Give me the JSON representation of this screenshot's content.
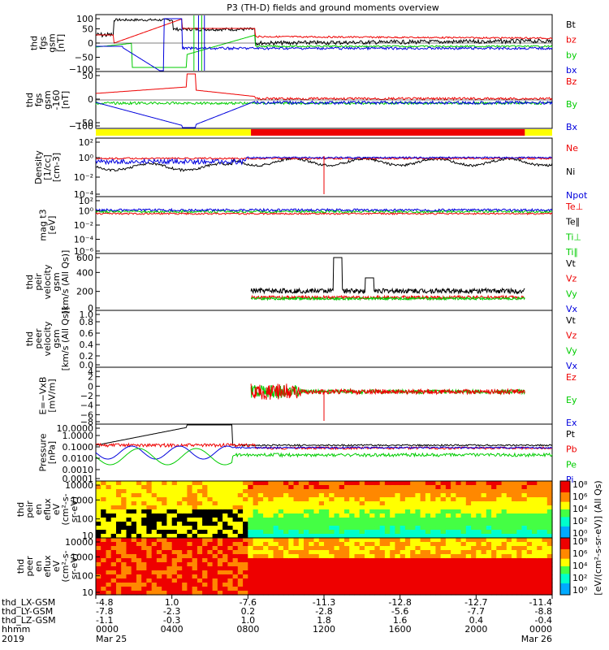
{
  "title": "P3 (TH-D) fields and ground moments overview",
  "colors": {
    "black": "#000000",
    "red": "#ee0000",
    "green": "#00cc00",
    "blue": "#0000dd",
    "yellow": "#ffff00"
  },
  "chart_data": [
    {
      "type": "line",
      "ylabel": [
        "thd",
        "fgs",
        "gsm",
        "[nT]"
      ],
      "ylim": [
        -100,
        100
      ],
      "yticks": [
        "100",
        "50",
        "0",
        "−50",
        "−100"
      ],
      "series": [
        {
          "name": "Bt",
          "color": "black"
        },
        {
          "name": "bz",
          "color": "red"
        },
        {
          "name": "by",
          "color": "green"
        },
        {
          "name": "bx",
          "color": "blue"
        }
      ]
    },
    {
      "type": "line",
      "ylabel": [
        "thd",
        "fgs",
        "gsm",
        "-160",
        "[nT]"
      ],
      "ylim": [
        -120,
        50
      ],
      "yticks": [
        "50",
        "0",
        "−50",
        "−100"
      ],
      "series": [
        {
          "name": "Bz",
          "color": "red"
        },
        {
          "name": "By",
          "color": "green"
        },
        {
          "name": "Bx",
          "color": "blue"
        }
      ]
    },
    {
      "type": "line",
      "ylabel": [
        "Density",
        "[1/cc]",
        "[cm-3]"
      ],
      "log": true,
      "yticks": [
        "10²",
        "10⁰",
        "10⁻²",
        "10⁻⁴"
      ],
      "series": [
        {
          "name": "Ne",
          "color": "red"
        },
        {
          "name": "Ni",
          "color": "black"
        },
        {
          "name": "Npot",
          "color": "blue"
        }
      ]
    },
    {
      "type": "line",
      "ylabel": [
        "mag t3",
        "[eV]"
      ],
      "log": true,
      "yticks": [
        "10²",
        "10⁰",
        "10⁻²",
        "10⁻⁴",
        "10⁻⁶"
      ],
      "series": [
        {
          "name": "Te⊥",
          "color": "red"
        },
        {
          "name": "Te∥",
          "color": "black"
        },
        {
          "name": "Ti⊥",
          "color": "green"
        },
        {
          "name": "Ti∥",
          "color": "green"
        }
      ]
    },
    {
      "type": "line",
      "ylabel": [
        "thd",
        "peir",
        "velocity",
        "gsm",
        "[km/s (All Qs)]"
      ],
      "ylim": [
        -100,
        600
      ],
      "yticks": [
        "600",
        "400",
        "200",
        "0"
      ],
      "series": [
        {
          "name": "Vt",
          "color": "black"
        },
        {
          "name": "Vz",
          "color": "red"
        },
        {
          "name": "Vy",
          "color": "green"
        },
        {
          "name": "Vx",
          "color": "blue"
        }
      ]
    },
    {
      "type": "line",
      "ylabel": [
        "thd",
        "peer",
        "velocity",
        "gsm",
        "[km/s (All Qs)]"
      ],
      "ylim": [
        0,
        1
      ],
      "yticks": [
        "1.0",
        "0.8",
        "0.6",
        "0.4",
        "0.2",
        "0.0"
      ],
      "series": [
        {
          "name": "Vt",
          "color": "black"
        },
        {
          "name": "Vz",
          "color": "red"
        },
        {
          "name": "Vy",
          "color": "green"
        },
        {
          "name": "Vx",
          "color": "blue"
        }
      ]
    },
    {
      "type": "line",
      "ylabel": [
        "E=−VxB",
        "[mV/m]"
      ],
      "ylim": [
        -8,
        4
      ],
      "yticks": [
        "4",
        "2",
        "0",
        "−2",
        "−4",
        "−6",
        "−8"
      ],
      "series": [
        {
          "name": "Ez",
          "color": "red"
        },
        {
          "name": "Ey",
          "color": "green"
        },
        {
          "name": "Ex",
          "color": "blue"
        }
      ]
    },
    {
      "type": "line",
      "ylabel": [
        "Pressure",
        "[nPa]"
      ],
      "log": true,
      "yticks": [
        "10.0000",
        "1.0000",
        "0.1000",
        "0.0100",
        "0.0010",
        "0.0001"
      ],
      "series": [
        {
          "name": "Pt",
          "color": "black"
        },
        {
          "name": "Pb",
          "color": "red"
        },
        {
          "name": "Pe",
          "color": "green"
        },
        {
          "name": "Pi",
          "color": "blue"
        }
      ]
    },
    {
      "type": "heatmap",
      "ylabel": [
        "thd",
        "peir",
        "en",
        "eflux",
        "eV",
        "(cm²-s-",
        "sr-eV)"
      ],
      "yticks": [
        "10000",
        "1000",
        "100",
        "10"
      ]
    },
    {
      "type": "heatmap",
      "ylabel": [
        "thd",
        "peer",
        "en",
        "eflux",
        "eV",
        "(cm²-s-",
        "sr-eV)"
      ],
      "yticks": [
        "10000",
        "1000",
        "100",
        "10"
      ]
    }
  ],
  "colorbar": {
    "ticks_top": [
      "10⁸",
      "10⁶",
      "10⁴",
      "10²",
      "10⁰"
    ],
    "ticks_bottom": [
      "10⁸",
      "10⁶",
      "10⁴",
      "10²",
      "10⁰"
    ],
    "label": "[eV/(cm²-s-sr-eV)] (All Qs)"
  },
  "xaxis": {
    "row_labels": [
      "thd_LX-GSM",
      "thd_LY-GSM",
      "thd_LZ-GSM",
      "hhmm",
      "2019"
    ],
    "columns": [
      {
        "vals": [
          "-4.8",
          "-7.8",
          "-1.1",
          "0000",
          "Mar 25"
        ]
      },
      {
        "vals": [
          "1.0",
          "-2.3",
          "-0.3",
          "0400",
          ""
        ]
      },
      {
        "vals": [
          "-7.6",
          "0.2",
          "1.0",
          "0800",
          ""
        ]
      },
      {
        "vals": [
          "-11.3",
          "-2.8",
          "1.8",
          "1200",
          ""
        ]
      },
      {
        "vals": [
          "-12.8",
          "-5.6",
          "1.6",
          "1600",
          ""
        ]
      },
      {
        "vals": [
          "-12.7",
          "-7.7",
          "0.4",
          "2000",
          ""
        ]
      },
      {
        "vals": [
          "-11.4",
          "-8.8",
          "-0.4",
          "0000",
          "Mar 26"
        ]
      }
    ]
  }
}
